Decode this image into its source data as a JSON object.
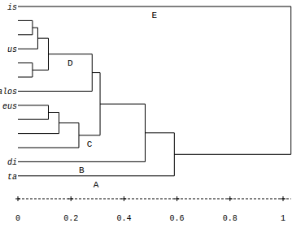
{
  "chart_data": {
    "type": "dendrogram",
    "leaves": [
      "is",
      null,
      null,
      "us",
      null,
      null,
      "alos",
      "eus",
      null,
      null,
      null,
      "di",
      "ta"
    ],
    "merges": [
      {
        "a": 1,
        "b": 2,
        "height": 0.055
      },
      {
        "a": 13,
        "b": 3,
        "height": 0.075
      },
      {
        "a": 4,
        "b": 5,
        "height": 0.055
      },
      {
        "a": 14,
        "b": 15,
        "height": 0.115
      },
      {
        "a": 16,
        "b": 6,
        "height": 0.28
      },
      {
        "a": 7,
        "b": 8,
        "height": 0.115
      },
      {
        "a": 18,
        "b": 9,
        "height": 0.155
      },
      {
        "a": 19,
        "b": 10,
        "height": 0.23
      },
      {
        "a": 17,
        "b": 20,
        "height": 0.31
      },
      {
        "a": 21,
        "b": 11,
        "height": 0.48
      },
      {
        "a": 22,
        "b": 12,
        "height": 0.59
      },
      {
        "a": 0,
        "b": 23,
        "height": 1.03
      }
    ],
    "annotations": [
      {
        "text": "E",
        "node": 0
      },
      {
        "text": "D",
        "node": 16
      },
      {
        "text": "C",
        "node": 20
      },
      {
        "text": "B",
        "node": 11
      },
      {
        "text": "A",
        "node": 12
      }
    ],
    "xlim": [
      0,
      1.03
    ],
    "xticks": [
      0,
      0.2,
      0.4,
      0.6,
      0.8,
      1
    ],
    "color": "#000000"
  }
}
